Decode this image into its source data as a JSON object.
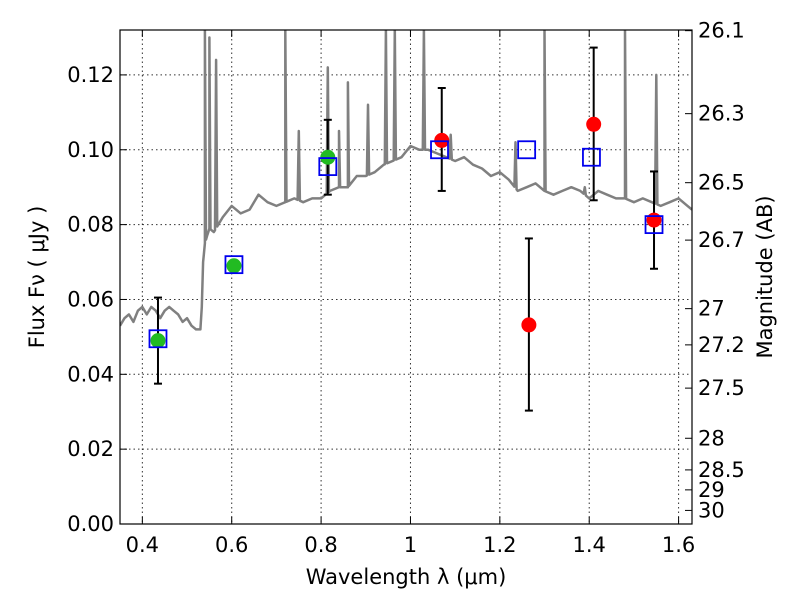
{
  "chart_data": {
    "type": "scatter",
    "title": "",
    "xlabel": "Wavelength  λ (μm)",
    "ylabel": "Flux  Fν  ( μJy )",
    "y2label": "Magnitude (AB)",
    "xlim": [
      0.35,
      1.63
    ],
    "ylim": [
      0.0,
      0.132
    ],
    "grid": true,
    "legend": "none",
    "x_ticks": [
      0.4,
      0.6,
      0.8,
      1.0,
      1.2,
      1.4,
      1.6
    ],
    "x_tick_labels": [
      "0.4",
      "0.6",
      "0.8",
      "1",
      "1.2",
      "1.4",
      "1.6"
    ],
    "y_ticks": [
      0.0,
      0.02,
      0.04,
      0.06,
      0.08,
      0.1,
      0.12
    ],
    "y_tick_labels": [
      "0.00",
      "0.02",
      "0.04",
      "0.06",
      "0.08",
      "0.10",
      "0.12"
    ],
    "y2_tick_labels": [
      "26.1",
      "26.3",
      "26.5",
      "26.7",
      "27",
      "27.2",
      "27.5",
      "28",
      "28.5",
      "29",
      "30"
    ],
    "colors": {
      "model": "#808080",
      "observed_optical": "#22bb22",
      "observed_nir": "#ff0000",
      "model_photometry": "#0000ee",
      "errorbar": "#000000"
    },
    "model_spectrum": {
      "x": [
        0.35,
        0.36,
        0.37,
        0.38,
        0.39,
        0.4,
        0.41,
        0.42,
        0.43,
        0.44,
        0.45,
        0.46,
        0.47,
        0.48,
        0.49,
        0.5,
        0.51,
        0.52,
        0.53,
        0.533,
        0.536,
        0.54,
        0.545,
        0.55,
        0.56,
        0.57,
        0.58,
        0.6,
        0.62,
        0.64,
        0.66,
        0.68,
        0.7,
        0.72,
        0.74,
        0.76,
        0.78,
        0.8,
        0.82,
        0.84,
        0.86,
        0.88,
        0.9,
        0.92,
        0.94,
        0.96,
        0.98,
        1.0,
        1.02,
        1.04,
        1.06,
        1.08,
        1.1,
        1.12,
        1.14,
        1.16,
        1.18,
        1.2,
        1.22,
        1.24,
        1.26,
        1.28,
        1.3,
        1.32,
        1.34,
        1.36,
        1.38,
        1.4,
        1.42,
        1.44,
        1.46,
        1.48,
        1.5,
        1.52,
        1.54,
        1.56,
        1.58,
        1.6,
        1.62,
        1.63
      ],
      "y": [
        0.053,
        0.055,
        0.056,
        0.054,
        0.057,
        0.058,
        0.056,
        0.058,
        0.057,
        0.055,
        0.057,
        0.058,
        0.057,
        0.056,
        0.054,
        0.055,
        0.053,
        0.052,
        0.052,
        0.058,
        0.07,
        0.075,
        0.077,
        0.079,
        0.078,
        0.08,
        0.082,
        0.085,
        0.083,
        0.084,
        0.088,
        0.086,
        0.085,
        0.086,
        0.087,
        0.086,
        0.087,
        0.087,
        0.089,
        0.09,
        0.09,
        0.093,
        0.093,
        0.094,
        0.096,
        0.097,
        0.098,
        0.101,
        0.1,
        0.1,
        0.099,
        0.098,
        0.097,
        0.098,
        0.096,
        0.095,
        0.093,
        0.094,
        0.092,
        0.089,
        0.09,
        0.091,
        0.089,
        0.088,
        0.089,
        0.09,
        0.089,
        0.087,
        0.089,
        0.088,
        0.087,
        0.087,
        0.086,
        0.087,
        0.086,
        0.085,
        0.086,
        0.087,
        0.085,
        0.084
      ],
      "emission_lines": [
        {
          "x": 0.54,
          "peak": 0.132
        },
        {
          "x": 0.55,
          "peak": 0.13
        },
        {
          "x": 0.565,
          "peak": 0.124
        },
        {
          "x": 0.72,
          "peak": 0.132
        },
        {
          "x": 0.75,
          "peak": 0.105
        },
        {
          "x": 0.815,
          "peak": 0.122
        },
        {
          "x": 0.84,
          "peak": 0.105
        },
        {
          "x": 0.86,
          "peak": 0.118
        },
        {
          "x": 0.905,
          "peak": 0.112
        },
        {
          "x": 0.945,
          "peak": 0.132
        },
        {
          "x": 0.965,
          "peak": 0.132
        },
        {
          "x": 1.03,
          "peak": 0.132
        },
        {
          "x": 1.09,
          "peak": 0.104
        },
        {
          "x": 1.235,
          "peak": 0.102
        },
        {
          "x": 1.3,
          "peak": 0.132
        },
        {
          "x": 1.39,
          "peak": 0.09
        },
        {
          "x": 1.48,
          "peak": 0.132
        },
        {
          "x": 1.55,
          "peak": 0.12
        }
      ]
    },
    "series": [
      {
        "marker": "filled-circle",
        "color": "#22bb22",
        "points": [
          {
            "x": 0.435,
            "y": 0.049,
            "yerr_low": 0.0375,
            "yerr_high": 0.0605
          },
          {
            "x": 0.605,
            "y": 0.069,
            "yerr_low": 0.069,
            "yerr_high": 0.069
          },
          {
            "x": 0.815,
            "y": 0.098,
            "yerr_low": 0.088,
            "yerr_high": 0.108
          }
        ]
      },
      {
        "marker": "filled-circle",
        "color": "#ff0000",
        "points": [
          {
            "x": 1.07,
            "y": 0.1025,
            "yerr_low": 0.089,
            "yerr_high": 0.1165
          },
          {
            "x": 1.265,
            "y": 0.0532,
            "yerr_low": 0.0303,
            "yerr_high": 0.0763
          },
          {
            "x": 1.41,
            "y": 0.1068,
            "yerr_low": 0.0865,
            "yerr_high": 0.1273
          },
          {
            "x": 1.545,
            "y": 0.0812,
            "yerr_low": 0.0682,
            "yerr_high": 0.0942
          }
        ]
      },
      {
        "marker": "open-square",
        "color": "#0000ee",
        "points": [
          {
            "x": 0.435,
            "y": 0.0495
          },
          {
            "x": 0.605,
            "y": 0.0693
          },
          {
            "x": 0.815,
            "y": 0.0955
          },
          {
            "x": 1.065,
            "y": 0.1
          },
          {
            "x": 1.26,
            "y": 0.1
          },
          {
            "x": 1.405,
            "y": 0.098
          },
          {
            "x": 1.545,
            "y": 0.08
          }
        ]
      }
    ]
  }
}
